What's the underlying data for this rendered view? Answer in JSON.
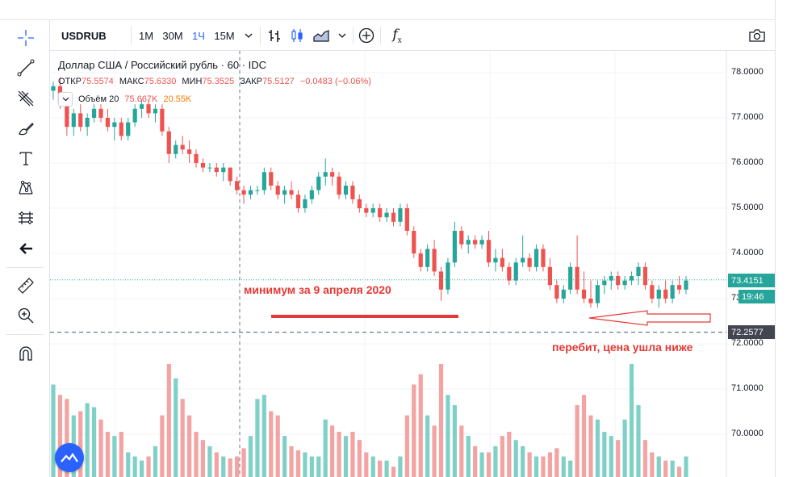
{
  "toolbar": {
    "symbol": "USDRUB",
    "intervals": [
      "1M",
      "30M",
      "1Ч",
      "15M"
    ],
    "active_interval": "1Ч"
  },
  "legend": {
    "title": "Доллар США / Российский рубль · 60 · IDC",
    "ohlc": [
      {
        "label": "ОТКР",
        "value": "75.5574"
      },
      {
        "label": "МАКС",
        "value": "75.6330"
      },
      {
        "label": "МИН",
        "value": "75.3525"
      },
      {
        "label": "ЗАКР",
        "value": "75.5127"
      }
    ],
    "change": "−0.0483 (−0.06%)",
    "volume_label": "Объём 20",
    "volume_value1": "75.667K",
    "volume_value2": "20.55K"
  },
  "price_axis": [
    "78.0000",
    "77.0000",
    "76.0000",
    "75.0000",
    "74.0000",
    "73.0000",
    "72.0000",
    "71.0000",
    "70.0000"
  ],
  "badges": {
    "last_price": "73.4151",
    "countdown": "19:46",
    "line_price": "72.2577"
  },
  "annotations": {
    "minimum": "минимум за 9 апреля 2020",
    "broken": "перебит, цена ушла ниже"
  },
  "colors": {
    "up": "#26a69a",
    "down": "#ef5350",
    "vol_up": "#7fd1c8",
    "vol_down": "#f3a3a1",
    "annotation": "#e53935",
    "text": "#131722",
    "last_line": "#26a69a",
    "dashed_line": "#4a5a7a"
  },
  "chart_data": {
    "type": "candlestick",
    "ylim": [
      69.7,
      78.3
    ],
    "candles": [
      [
        77.6,
        77.8,
        77.4,
        77.7
      ],
      [
        77.7,
        77.9,
        77.2,
        77.3
      ],
      [
        77.3,
        77.4,
        76.6,
        76.8
      ],
      [
        76.8,
        77.2,
        76.6,
        77.1
      ],
      [
        77.1,
        77.3,
        76.7,
        76.8
      ],
      [
        76.8,
        77.1,
        76.6,
        77.0
      ],
      [
        77.0,
        77.3,
        76.9,
        77.2
      ],
      [
        77.2,
        77.3,
        76.9,
        77.0
      ],
      [
        77.0,
        77.2,
        76.7,
        76.8
      ],
      [
        76.8,
        77.0,
        76.5,
        76.9
      ],
      [
        76.9,
        77.0,
        76.5,
        76.6
      ],
      [
        76.6,
        77.0,
        76.5,
        76.9
      ],
      [
        76.9,
        77.3,
        76.8,
        77.2
      ],
      [
        77.2,
        77.4,
        77.0,
        77.3
      ],
      [
        77.3,
        77.4,
        77.0,
        77.1
      ],
      [
        77.1,
        77.3,
        76.9,
        77.2
      ],
      [
        77.2,
        77.3,
        76.6,
        76.7
      ],
      [
        76.7,
        76.8,
        76.0,
        76.2
      ],
      [
        76.2,
        76.5,
        76.1,
        76.4
      ],
      [
        76.4,
        76.6,
        76.2,
        76.3
      ],
      [
        76.3,
        76.5,
        76.0,
        76.2
      ],
      [
        76.2,
        76.3,
        75.9,
        76.0
      ],
      [
        76.0,
        76.1,
        75.8,
        75.9
      ],
      [
        75.9,
        76.0,
        75.8,
        75.9
      ],
      [
        75.9,
        76.0,
        75.7,
        75.8
      ],
      [
        75.8,
        76.0,
        75.6,
        75.9
      ],
      [
        75.9,
        75.9,
        75.5,
        75.6
      ],
      [
        75.6,
        75.7,
        75.3,
        75.4
      ],
      [
        75.4,
        75.5,
        75.1,
        75.3
      ],
      [
        75.3,
        75.5,
        75.2,
        75.4
      ],
      [
        75.4,
        75.5,
        75.3,
        75.4
      ],
      [
        75.4,
        75.9,
        75.3,
        75.8
      ],
      [
        75.8,
        75.9,
        75.4,
        75.5
      ],
      [
        75.5,
        75.6,
        75.2,
        75.3
      ],
      [
        75.3,
        75.5,
        75.1,
        75.4
      ],
      [
        75.4,
        75.6,
        75.2,
        75.3
      ],
      [
        75.3,
        75.4,
        74.9,
        75.0
      ],
      [
        75.0,
        75.3,
        74.9,
        75.2
      ],
      [
        75.2,
        75.5,
        75.1,
        75.4
      ],
      [
        75.4,
        75.8,
        75.3,
        75.7
      ],
      [
        75.7,
        76.1,
        75.5,
        75.8
      ],
      [
        75.8,
        75.9,
        75.5,
        75.7
      ],
      [
        75.7,
        75.8,
        75.2,
        75.3
      ],
      [
        75.3,
        75.6,
        75.2,
        75.5
      ],
      [
        75.5,
        75.6,
        75.1,
        75.2
      ],
      [
        75.2,
        75.3,
        74.9,
        75.0
      ],
      [
        75.0,
        75.1,
        74.8,
        74.9
      ],
      [
        74.9,
        75.1,
        74.8,
        75.0
      ],
      [
        75.0,
        75.1,
        74.7,
        74.8
      ],
      [
        74.8,
        75.0,
        74.7,
        74.9
      ],
      [
        74.9,
        75.0,
        74.6,
        74.7
      ],
      [
        74.7,
        75.1,
        74.6,
        75.0
      ],
      [
        75.0,
        75.1,
        74.4,
        74.5
      ],
      [
        74.5,
        74.6,
        73.9,
        74.0
      ],
      [
        74.0,
        74.1,
        73.6,
        73.7
      ],
      [
        73.7,
        74.2,
        73.6,
        74.1
      ],
      [
        74.1,
        74.3,
        73.5,
        73.6
      ],
      [
        73.6,
        73.7,
        72.95,
        73.2
      ],
      [
        73.2,
        73.9,
        73.1,
        73.8
      ],
      [
        73.8,
        74.7,
        73.7,
        74.5
      ],
      [
        74.5,
        74.6,
        74.1,
        74.2
      ],
      [
        74.2,
        74.4,
        74.0,
        74.3
      ],
      [
        74.3,
        74.4,
        74.1,
        74.2
      ],
      [
        74.2,
        74.4,
        74.1,
        74.3
      ],
      [
        74.3,
        74.5,
        73.7,
        73.8
      ],
      [
        73.8,
        74.1,
        73.6,
        73.9
      ],
      [
        73.9,
        74.1,
        73.6,
        73.7
      ],
      [
        73.7,
        73.8,
        73.3,
        73.4
      ],
      [
        73.4,
        73.9,
        73.3,
        73.8
      ],
      [
        73.8,
        74.4,
        73.7,
        73.9
      ],
      [
        73.9,
        74.0,
        73.6,
        73.7
      ],
      [
        73.7,
        74.2,
        73.6,
        74.1
      ],
      [
        74.1,
        74.2,
        73.6,
        73.7
      ],
      [
        73.7,
        73.9,
        73.2,
        73.3
      ],
      [
        73.3,
        73.4,
        72.9,
        73.0
      ],
      [
        73.0,
        73.3,
        72.9,
        73.2
      ],
      [
        73.2,
        73.8,
        73.1,
        73.7
      ],
      [
        73.7,
        74.4,
        73.1,
        73.2
      ],
      [
        73.2,
        73.6,
        72.9,
        73.0
      ],
      [
        73.0,
        73.4,
        72.8,
        72.9
      ],
      [
        72.9,
        73.4,
        72.8,
        73.3
      ],
      [
        73.3,
        73.5,
        73.1,
        73.4
      ],
      [
        73.4,
        73.6,
        73.2,
        73.5
      ],
      [
        73.5,
        73.6,
        73.2,
        73.3
      ],
      [
        73.3,
        73.5,
        73.2,
        73.4
      ],
      [
        73.4,
        73.6,
        73.3,
        73.5
      ],
      [
        73.5,
        73.8,
        73.3,
        73.7
      ],
      [
        73.7,
        73.8,
        73.2,
        73.3
      ],
      [
        73.3,
        73.4,
        72.9,
        73.0
      ],
      [
        73.0,
        73.3,
        72.8,
        73.2
      ],
      [
        73.2,
        73.4,
        72.9,
        73.0
      ],
      [
        73.0,
        73.4,
        72.9,
        73.3
      ],
      [
        73.3,
        73.5,
        73.1,
        73.2
      ],
      [
        73.2,
        73.5,
        73.1,
        73.4
      ]
    ],
    "volumes": [
      0.45,
      0.4,
      0.38,
      0.3,
      0.32,
      0.36,
      0.34,
      0.28,
      0.22,
      0.2,
      0.22,
      0.12,
      0.1,
      0.08,
      0.1,
      0.15,
      0.3,
      0.55,
      0.48,
      0.38,
      0.3,
      0.22,
      0.18,
      0.15,
      0.12,
      0.1,
      0.09,
      0.1,
      0.14,
      0.2,
      0.38,
      0.4,
      0.32,
      0.3,
      0.2,
      0.15,
      0.13,
      0.12,
      0.1,
      0.1,
      0.28,
      0.25,
      0.22,
      0.2,
      0.22,
      0.18,
      0.12,
      0.1,
      0.08,
      0.08,
      0.05,
      0.1,
      0.3,
      0.45,
      0.5,
      0.3,
      0.25,
      0.55,
      0.4,
      0.35,
      0.25,
      0.2,
      0.15,
      0.12,
      0.12,
      0.15,
      0.2,
      0.22,
      0.18,
      0.15,
      0.12,
      0.1,
      0.1,
      0.12,
      0.14,
      0.1,
      0.08,
      0.35,
      0.4,
      0.3,
      0.28,
      0.22,
      0.2,
      0.18,
      0.28,
      0.55,
      0.35,
      0.18,
      0.12,
      0.1,
      0.08,
      0.08,
      0.05,
      0.1
    ]
  }
}
